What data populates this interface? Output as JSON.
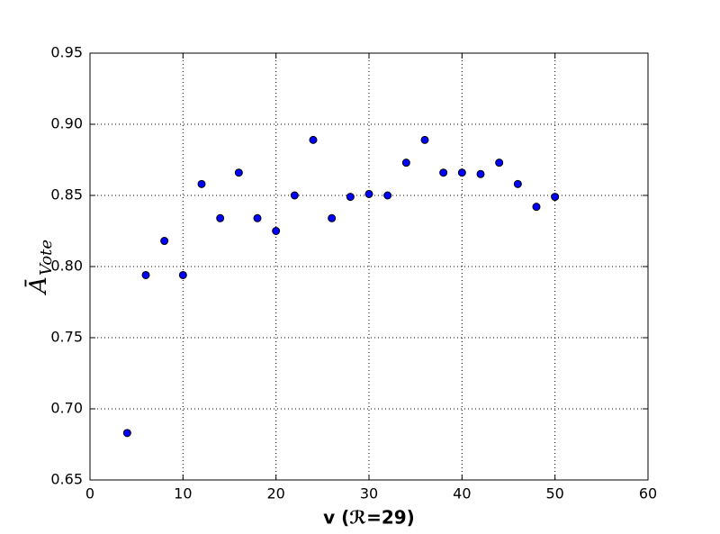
{
  "chart_data": {
    "type": "scatter",
    "xlabel": "v (ℛ=29)",
    "ylabel": {
      "base": "Ā",
      "sub": "Vote"
    },
    "x": [
      4,
      6,
      8,
      10,
      12,
      14,
      16,
      18,
      20,
      22,
      24,
      26,
      28,
      30,
      32,
      34,
      36,
      38,
      40,
      42,
      44,
      46,
      48,
      50
    ],
    "values": [
      0.683,
      0.794,
      0.818,
      0.794,
      0.858,
      0.834,
      0.866,
      0.834,
      0.825,
      0.85,
      0.889,
      0.834,
      0.849,
      0.851,
      0.85,
      0.873,
      0.889,
      0.866,
      0.866,
      0.865,
      0.873,
      0.858,
      0.842,
      0.849
    ],
    "color": "#0000ff",
    "xlim": [
      0,
      60
    ],
    "xticks": [
      0,
      10,
      20,
      30,
      40,
      50,
      60
    ],
    "ylim": [
      0.65,
      0.95
    ],
    "yticks": [
      0.65,
      {
        "value": 0.7,
        "label": "0.70"
      },
      0.75,
      {
        "value": 0.8,
        "label": "0.80"
      },
      0.85,
      {
        "value": 0.9,
        "label": "0.90"
      },
      0.95
    ],
    "grid": true
  }
}
